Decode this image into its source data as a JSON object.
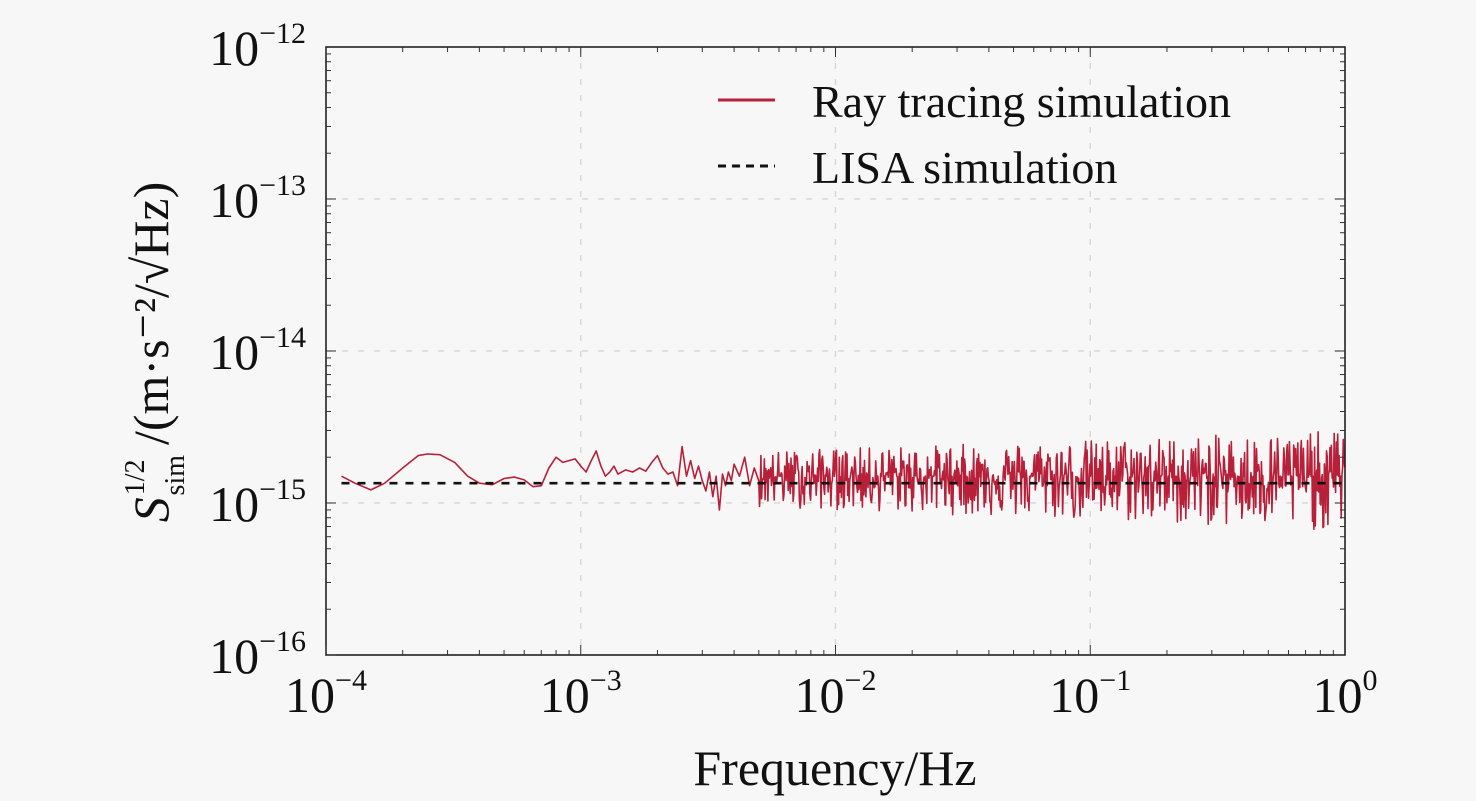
{
  "chart_data": {
    "type": "line",
    "title": "",
    "xlabel": "Frequency/Hz",
    "ylabel": {
      "symbol": "S",
      "superscript": "1/2",
      "subscript": "sim",
      "units": "/(m·s⁻²/√Hz)"
    },
    "xscale": "log",
    "yscale": "log",
    "xlim": [
      0.0001,
      1
    ],
    "ylim": [
      1e-16,
      1e-12
    ],
    "x_ticks": [
      {
        "value": 0.0001,
        "base": "10",
        "exp": "−4"
      },
      {
        "value": 0.001,
        "base": "10",
        "exp": "−3"
      },
      {
        "value": 0.01,
        "base": "10",
        "exp": "−2"
      },
      {
        "value": 0.1,
        "base": "10",
        "exp": "−1"
      },
      {
        "value": 1,
        "base": "10",
        "exp": "0"
      }
    ],
    "y_ticks": [
      {
        "value": 1e-12,
        "base": "10",
        "exp": "−12"
      },
      {
        "value": 1e-13,
        "base": "10",
        "exp": "−13"
      },
      {
        "value": 1e-14,
        "base": "10",
        "exp": "−14"
      },
      {
        "value": 1e-15,
        "base": "10",
        "exp": "−15"
      },
      {
        "value": 1e-16,
        "base": "10",
        "exp": "−16"
      }
    ],
    "grid": true,
    "legend_position": "top-right",
    "series": [
      {
        "name": "Ray tracing simulation",
        "color": "#b8203a",
        "style": "solid",
        "x": [
          0.000115,
          0.00013,
          0.00015,
          0.00017,
          0.0002,
          0.00023,
          0.00025,
          0.00028,
          0.00032,
          0.00036,
          0.0004,
          0.00045,
          0.0005,
          0.00055,
          0.0006,
          0.00065,
          0.0007,
          0.00075,
          0.0008,
          0.00085,
          0.0009,
          0.00095,
          0.001,
          0.00105,
          0.0011,
          0.00115,
          0.0012,
          0.00125,
          0.0013,
          0.00135,
          0.0014,
          0.0015,
          0.0016,
          0.0017,
          0.0018,
          0.0019,
          0.002,
          0.0021,
          0.0022,
          0.0023,
          0.0024,
          0.0025,
          0.0026,
          0.0027,
          0.0028,
          0.0029,
          0.003,
          0.0031,
          0.0032,
          0.0033,
          0.0034,
          0.0035,
          0.0036,
          0.0037,
          0.0038,
          0.0039,
          0.004,
          0.0042,
          0.0044,
          0.0046,
          0.0048
        ],
        "y": [
          1.5e-15,
          1.35e-15,
          1.22e-15,
          1.35e-15,
          1.7e-15,
          2.05e-15,
          2.1e-15,
          2.08e-15,
          1.85e-15,
          1.5e-15,
          1.35e-15,
          1.32e-15,
          1.45e-15,
          1.48e-15,
          1.42e-15,
          1.28e-15,
          1.3e-15,
          1.7e-15,
          2e-15,
          1.85e-15,
          1.9e-15,
          1.95e-15,
          1.75e-15,
          1.6e-15,
          1.9e-15,
          2.2e-15,
          1.75e-15,
          1.5e-15,
          1.6e-15,
          1.75e-15,
          1.55e-15,
          1.65e-15,
          1.6e-15,
          1.7e-15,
          1.62e-15,
          1.85e-15,
          2.05e-15,
          1.7e-15,
          1.55e-15,
          1.6e-15,
          1.3e-15,
          2.35e-15,
          1.5e-15,
          1.9e-15,
          1.45e-15,
          1.75e-15,
          1.4e-15,
          1.2e-15,
          1.6e-15,
          1.1e-15,
          1.5e-15,
          9e-16,
          1.55e-15,
          1.3e-15,
          1.6e-15,
          1.4e-15,
          1.8e-15,
          1.5e-15,
          2e-15,
          1.3e-15,
          1.7e-15
        ],
        "high_frequency_noise": {
          "from_hz": 0.005,
          "to_hz": 1,
          "band_center": 1.5e-15,
          "band_min": 6.5e-16,
          "band_max": 3e-15
        }
      },
      {
        "name": "LISA simulation",
        "color": "#111111",
        "style": "dashed",
        "x": [
          0.000115,
          1
        ],
        "y": [
          1.35e-15,
          1.35e-15
        ]
      }
    ]
  }
}
